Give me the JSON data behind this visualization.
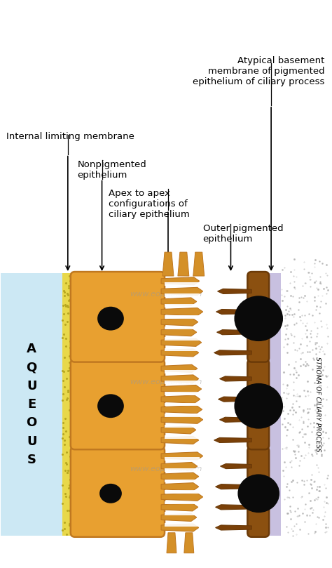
{
  "bg_color": "#ffffff",
  "aqueous_color": "#cce8f4",
  "yellow_color": "#e8d84a",
  "yellow_dot_color": "#b8a820",
  "orange_color": "#e8a030",
  "orange_edge": "#c07820",
  "brown_color": "#8B5010",
  "brown_dark": "#6B3a08",
  "nucleus_color": "#0a0a0a",
  "lavender_color": "#c8c0e0",
  "stroma_dot_color": "#aaaaaa",
  "watermark_color": "#999999",
  "finger_orange": "#d49028",
  "finger_brown": "#7a4008",
  "labels": {
    "atypical": "Atypical basement\nmembrane of pigmented\nepithelium of ciliary process",
    "internal": "Internal limiting membrane",
    "nonpigmented": "Nonpigmented\nepithelium",
    "apex": "Apex to apex\nconfigurations of\nciliary epithelium",
    "outer": "Outer pigmented\nepithelium",
    "aqueous": "A\nQ\nU\nE\nO\nU\nS",
    "stroma": "STROMA OF CILIARY PROCESS"
  },
  "fig_width": 4.74,
  "fig_height": 8.09
}
